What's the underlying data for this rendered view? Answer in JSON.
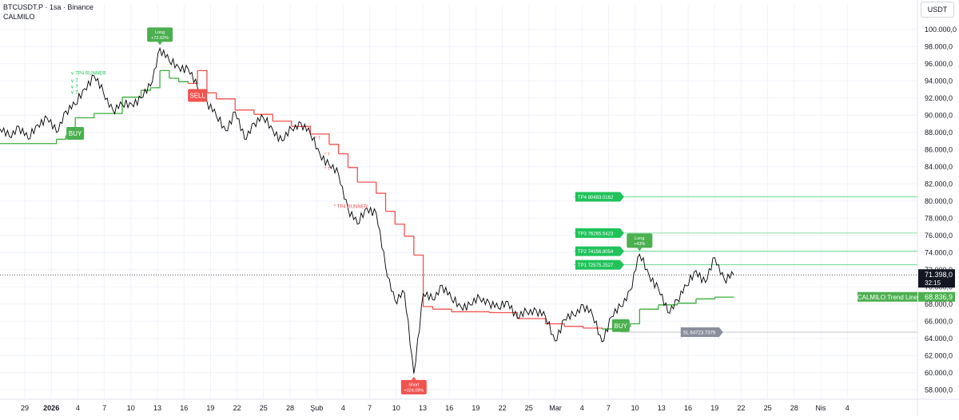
{
  "header": {
    "symbol_line": "BTCUSDT.P · 1sa · Binance",
    "indicator_name": "CALMILO"
  },
  "currency_button": "USDT",
  "colors": {
    "price": "#000000",
    "trend_green": "#3dae3d",
    "trend_red": "#f05350",
    "tp_green": "#1fc35a",
    "label_green": "#4caf50",
    "label_red": "#f05350",
    "sl_gray": "#8a8f9c",
    "grid": "#f0f3fa",
    "axis_text": "#131722"
  },
  "chart_data": {
    "type": "line",
    "title": "",
    "xlabel": "",
    "ylabel": "",
    "ylim": [
      57000,
      101000
    ],
    "y_ticks": [
      "58.000,0",
      "60.000,0",
      "62.000,0",
      "64.000,0",
      "66.000,0",
      "68.000,0",
      "70.000,0",
      "72.000,0",
      "74.000,0",
      "76.000,0",
      "78.000,0",
      "80.000,0",
      "82.000,0",
      "84.000,0",
      "86.000,0",
      "88.000,0",
      "90.000,0",
      "92.000,0",
      "94.000,0",
      "96.000,0",
      "98.000,0",
      "100.000,0"
    ],
    "x_ticks": [
      "29",
      "2026",
      "4",
      "7",
      "10",
      "13",
      "16",
      "19",
      "22",
      "25",
      "28",
      "Şub",
      "4",
      "7",
      "10",
      "13",
      "16",
      "19",
      "22",
      "25",
      "Mar",
      "4",
      "7",
      "10",
      "13",
      "16",
      "19",
      "22",
      "25",
      "28",
      "Nis",
      "4"
    ],
    "price_series": {
      "name": "",
      "x": [
        0,
        1,
        2,
        3,
        4,
        5,
        6,
        7,
        8,
        9,
        10,
        11,
        12,
        13,
        14,
        15,
        16,
        17,
        18,
        19,
        20,
        21,
        22,
        23,
        24,
        25,
        26,
        27,
        28,
        29,
        30,
        31,
        32,
        33,
        34,
        35,
        36,
        37,
        38,
        39,
        40,
        41,
        42,
        43,
        44,
        45,
        46,
        47,
        48,
        49,
        50,
        51,
        52,
        53,
        54,
        55,
        56,
        57,
        58,
        59,
        60,
        61,
        62,
        63,
        64,
        65,
        66,
        67,
        68,
        69,
        70,
        71,
        72,
        73,
        74,
        75,
        76,
        77,
        78
      ],
      "y": [
        88400,
        87500,
        88700,
        87200,
        88900,
        89700,
        88000,
        90500,
        91200,
        93100,
        94600,
        92600,
        90600,
        91200,
        91300,
        92000,
        93400,
        97800,
        96300,
        95600,
        95400,
        93200,
        91600,
        89900,
        88200,
        90400,
        87200,
        89100,
        89700,
        88300,
        87000,
        88400,
        89100,
        87800,
        85500,
        84200,
        83100,
        79100,
        77300,
        79200,
        78600,
        72300,
        68400,
        69300,
        59900,
        69200,
        68500,
        70200,
        68600,
        67700,
        67900,
        68700,
        68200,
        67500,
        68300,
        66400,
        67100,
        67300,
        66500,
        63700,
        66200,
        66700,
        67900,
        66700,
        63600,
        66500,
        67700,
        69600,
        73800,
        71400,
        69800,
        67000,
        68500,
        70100,
        71900,
        70500,
        73400,
        70900,
        71398
      ]
    },
    "trend_series": {
      "name": "CALMILO:Trend Line",
      "x": [
        0,
        6,
        7,
        8,
        10,
        13,
        15,
        16,
        17,
        18,
        19,
        20,
        21,
        22,
        23,
        25,
        27,
        29,
        31,
        33,
        35,
        36,
        37,
        38,
        40,
        41,
        42,
        43,
        44,
        45,
        46,
        48,
        52,
        55,
        58,
        60,
        62,
        64,
        66,
        67,
        68,
        70,
        72,
        74,
        76,
        78
      ],
      "y": [
        86700,
        87200,
        87600,
        89700,
        90200,
        92100,
        92900,
        93200,
        95200,
        94300,
        93900,
        93700,
        95200,
        92600,
        91900,
        90600,
        90100,
        89300,
        88700,
        87800,
        86600,
        85500,
        83900,
        82200,
        80900,
        78800,
        77300,
        75900,
        73700,
        67700,
        67400,
        67100,
        67000,
        66300,
        65700,
        65400,
        65200,
        65100,
        65400,
        65700,
        67400,
        67900,
        68100,
        68600,
        68800,
        68836.9
      ],
      "regime": [
        "long",
        "long",
        "long",
        "long",
        "long",
        "long",
        "long",
        "long",
        "long",
        "long",
        "long",
        "short",
        "short",
        "short",
        "short",
        "short",
        "short",
        "short",
        "short",
        "short",
        "short",
        "short",
        "short",
        "short",
        "short",
        "short",
        "short",
        "short",
        "short",
        "short",
        "short",
        "short",
        "short",
        "short",
        "short",
        "short",
        "short",
        "long",
        "long",
        "long",
        "long",
        "long",
        "long",
        "long",
        "long",
        "long"
      ]
    },
    "signals": [
      {
        "label": "BUY",
        "type": "buy",
        "x": 8,
        "y": 89000
      },
      {
        "label": "SELL",
        "type": "sell",
        "x": 21,
        "y": 92300
      },
      {
        "label": "BUY",
        "type": "buy",
        "x": 66,
        "y": 66600
      }
    ],
    "callouts": [
      {
        "line1": "Long",
        "line2": "+72.62%",
        "type": "long",
        "x": 17,
        "y": 97800
      },
      {
        "line1": "Short",
        "line2": "+324.08%",
        "type": "short",
        "x": 44,
        "y": 59900
      },
      {
        "line1": "Long",
        "line2": "+43%",
        "type": "long",
        "x": 68,
        "y": 73800
      }
    ],
    "tp_markers": [
      {
        "label": "∨ TP4 RUNNER",
        "x": 7.5,
        "y": 94700
      },
      {
        "label": "∨ T",
        "x": 7.5,
        "y": 93850
      },
      {
        "label": "∨ T",
        "x": 7.5,
        "y": 93150
      },
      {
        "label": "∨ T",
        "x": 7.5,
        "y": 92500
      },
      {
        "label": "* TP4 RUNNER",
        "x": 35.5,
        "y": 79200
      }
    ],
    "sell_ticks": [
      {
        "label": "* T",
        "x": 33.5,
        "y": 87200
      },
      {
        "label": "* T",
        "x": 34.5,
        "y": 85300
      },
      {
        "label": "* T",
        "x": 34.5,
        "y": 83600
      }
    ],
    "levels": [
      {
        "label": "TP4 80483.0162",
        "value": 80483.0162,
        "kind": "tp",
        "x_start": 61
      },
      {
        "label": "TP3 76265.5423",
        "value": 76265.5423,
        "kind": "tp",
        "x_start": 61
      },
      {
        "label": "TP2 74156.8054",
        "value": 74156.8054,
        "kind": "tp",
        "x_start": 61
      },
      {
        "label": "TP1 72575.2527",
        "value": 72575.2527,
        "kind": "tp",
        "x_start": 61
      },
      {
        "label": "SL 64723.7379",
        "value": 64723.7379,
        "kind": "sl",
        "x_start": 66
      }
    ],
    "last_price": {
      "value": 71398.0,
      "label": "71.398,0",
      "countdown": "32:15"
    },
    "trend_last": {
      "value": 68836.9,
      "label": "68.836,9",
      "name": "CALMILO:Trend Line"
    },
    "grid": true
  }
}
